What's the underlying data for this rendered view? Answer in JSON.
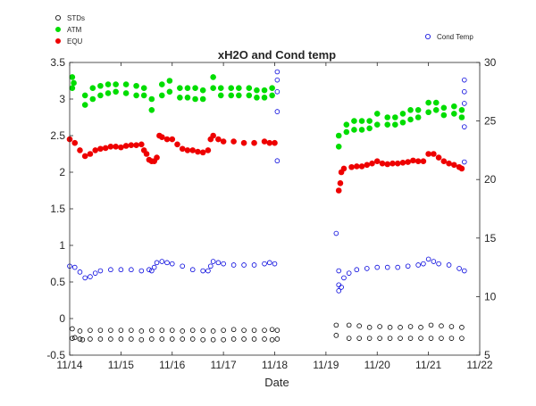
{
  "chart_data": {
    "type": "scatter",
    "title": "xH2O and Cond temp",
    "xlabel": "Date",
    "ylabel_left": "",
    "ylabel_right": "",
    "x_ticks": [
      "11/14",
      "11/15",
      "11/16",
      "11/17",
      "11/18",
      "11/19",
      "11/20",
      "11/21",
      "11/22"
    ],
    "xlim_days": [
      14,
      22
    ],
    "ylim_left": [
      -0.5,
      3.5
    ],
    "ylim_right": [
      5,
      30
    ],
    "y_ticks_left": [
      "-0.5",
      "0",
      "0.5",
      "1",
      "1.5",
      "2",
      "2.5",
      "3",
      "3.5"
    ],
    "y_ticks_right": [
      "5",
      "10",
      "15",
      "20",
      "25",
      "30"
    ],
    "grid": false,
    "legend_left": [
      "STDs",
      "ATM",
      "EQU"
    ],
    "legend_right": [
      "Cond Temp"
    ],
    "series": [
      {
        "name": "STDs",
        "axis": "left",
        "color": "#000000",
        "marker": "open-circle",
        "points": [
          [
            14.05,
            -0.14
          ],
          [
            14.05,
            -0.27
          ],
          [
            14.1,
            -0.26
          ],
          [
            14.2,
            -0.17
          ],
          [
            14.2,
            -0.28
          ],
          [
            14.25,
            -0.29
          ],
          [
            14.4,
            -0.16
          ],
          [
            14.4,
            -0.28
          ],
          [
            14.6,
            -0.16
          ],
          [
            14.6,
            -0.28
          ],
          [
            14.8,
            -0.16
          ],
          [
            14.8,
            -0.28
          ],
          [
            15.0,
            -0.16
          ],
          [
            15.0,
            -0.28
          ],
          [
            15.2,
            -0.16
          ],
          [
            15.2,
            -0.28
          ],
          [
            15.4,
            -0.17
          ],
          [
            15.4,
            -0.29
          ],
          [
            15.6,
            -0.16
          ],
          [
            15.6,
            -0.28
          ],
          [
            15.8,
            -0.16
          ],
          [
            15.8,
            -0.28
          ],
          [
            16.0,
            -0.16
          ],
          [
            16.0,
            -0.28
          ],
          [
            16.2,
            -0.17
          ],
          [
            16.2,
            -0.28
          ],
          [
            16.4,
            -0.16
          ],
          [
            16.4,
            -0.28
          ],
          [
            16.6,
            -0.16
          ],
          [
            16.6,
            -0.29
          ],
          [
            16.8,
            -0.17
          ],
          [
            16.8,
            -0.29
          ],
          [
            17.0,
            -0.16
          ],
          [
            17.0,
            -0.29
          ],
          [
            17.2,
            -0.15
          ],
          [
            17.2,
            -0.28
          ],
          [
            17.4,
            -0.16
          ],
          [
            17.4,
            -0.28
          ],
          [
            17.6,
            -0.16
          ],
          [
            17.6,
            -0.28
          ],
          [
            17.8,
            -0.16
          ],
          [
            17.8,
            -0.28
          ],
          [
            17.95,
            -0.15
          ],
          [
            17.95,
            -0.29
          ],
          [
            18.05,
            -0.16
          ],
          [
            18.05,
            -0.28
          ],
          [
            19.2,
            -0.09
          ],
          [
            19.2,
            -0.23
          ],
          [
            19.45,
            -0.09
          ],
          [
            19.45,
            -0.27
          ],
          [
            19.65,
            -0.1
          ],
          [
            19.65,
            -0.27
          ],
          [
            19.85,
            -0.12
          ],
          [
            19.85,
            -0.27
          ],
          [
            20.05,
            -0.11
          ],
          [
            20.05,
            -0.27
          ],
          [
            20.25,
            -0.12
          ],
          [
            20.25,
            -0.27
          ],
          [
            20.45,
            -0.12
          ],
          [
            20.45,
            -0.27
          ],
          [
            20.65,
            -0.11
          ],
          [
            20.65,
            -0.27
          ],
          [
            20.85,
            -0.12
          ],
          [
            20.85,
            -0.27
          ],
          [
            21.05,
            -0.09
          ],
          [
            21.05,
            -0.27
          ],
          [
            21.25,
            -0.1
          ],
          [
            21.25,
            -0.27
          ],
          [
            21.45,
            -0.11
          ],
          [
            21.45,
            -0.27
          ],
          [
            21.65,
            -0.12
          ],
          [
            21.65,
            -0.27
          ]
        ]
      },
      {
        "name": "ATM",
        "axis": "left",
        "color": "#00dd00",
        "marker": "filled-circle",
        "points": [
          [
            14.05,
            3.3
          ],
          [
            14.05,
            3.15
          ],
          [
            14.08,
            3.22
          ],
          [
            14.3,
            3.05
          ],
          [
            14.3,
            2.92
          ],
          [
            14.45,
            3.15
          ],
          [
            14.45,
            3.0
          ],
          [
            14.6,
            3.18
          ],
          [
            14.6,
            3.05
          ],
          [
            14.75,
            3.2
          ],
          [
            14.75,
            3.08
          ],
          [
            14.9,
            3.2
          ],
          [
            14.9,
            3.1
          ],
          [
            15.1,
            3.2
          ],
          [
            15.1,
            3.08
          ],
          [
            15.3,
            3.18
          ],
          [
            15.3,
            3.05
          ],
          [
            15.45,
            3.15
          ],
          [
            15.45,
            3.05
          ],
          [
            15.6,
            3.0
          ],
          [
            15.6,
            2.85
          ],
          [
            15.8,
            3.2
          ],
          [
            15.8,
            3.05
          ],
          [
            15.95,
            3.25
          ],
          [
            15.95,
            3.1
          ],
          [
            16.15,
            3.15
          ],
          [
            16.15,
            3.02
          ],
          [
            16.3,
            3.15
          ],
          [
            16.3,
            3.02
          ],
          [
            16.45,
            3.15
          ],
          [
            16.45,
            3.0
          ],
          [
            16.6,
            3.12
          ],
          [
            16.6,
            3.0
          ],
          [
            16.8,
            3.3
          ],
          [
            16.8,
            3.15
          ],
          [
            16.95,
            3.15
          ],
          [
            16.95,
            3.05
          ],
          [
            17.15,
            3.15
          ],
          [
            17.15,
            3.05
          ],
          [
            17.3,
            3.15
          ],
          [
            17.3,
            3.05
          ],
          [
            17.5,
            3.15
          ],
          [
            17.5,
            3.05
          ],
          [
            17.65,
            3.12
          ],
          [
            17.65,
            3.02
          ],
          [
            17.8,
            3.12
          ],
          [
            17.8,
            3.02
          ],
          [
            17.95,
            3.15
          ],
          [
            17.95,
            3.05
          ],
          [
            19.25,
            2.5
          ],
          [
            19.25,
            2.35
          ],
          [
            19.4,
            2.65
          ],
          [
            19.4,
            2.55
          ],
          [
            19.55,
            2.7
          ],
          [
            19.55,
            2.58
          ],
          [
            19.7,
            2.7
          ],
          [
            19.7,
            2.58
          ],
          [
            19.85,
            2.7
          ],
          [
            19.85,
            2.6
          ],
          [
            20.0,
            2.8
          ],
          [
            20.0,
            2.65
          ],
          [
            20.2,
            2.75
          ],
          [
            20.2,
            2.65
          ],
          [
            20.35,
            2.75
          ],
          [
            20.35,
            2.65
          ],
          [
            20.5,
            2.8
          ],
          [
            20.5,
            2.68
          ],
          [
            20.65,
            2.85
          ],
          [
            20.65,
            2.72
          ],
          [
            20.8,
            2.85
          ],
          [
            20.8,
            2.75
          ],
          [
            21.0,
            2.95
          ],
          [
            21.0,
            2.82
          ],
          [
            21.15,
            2.95
          ],
          [
            21.15,
            2.85
          ],
          [
            21.3,
            2.88
          ],
          [
            21.3,
            2.78
          ],
          [
            21.5,
            2.9
          ],
          [
            21.5,
            2.8
          ],
          [
            21.65,
            2.85
          ],
          [
            21.65,
            2.75
          ]
        ]
      },
      {
        "name": "EQU",
        "axis": "left",
        "color": "#ee0000",
        "marker": "filled-circle",
        "points": [
          [
            14.0,
            2.45
          ],
          [
            14.1,
            2.4
          ],
          [
            14.2,
            2.3
          ],
          [
            14.3,
            2.22
          ],
          [
            14.4,
            2.25
          ],
          [
            14.5,
            2.3
          ],
          [
            14.6,
            2.32
          ],
          [
            14.7,
            2.33
          ],
          [
            14.8,
            2.35
          ],
          [
            14.9,
            2.35
          ],
          [
            15.0,
            2.34
          ],
          [
            15.1,
            2.36
          ],
          [
            15.2,
            2.37
          ],
          [
            15.3,
            2.37
          ],
          [
            15.4,
            2.38
          ],
          [
            15.45,
            2.3
          ],
          [
            15.5,
            2.25
          ],
          [
            15.55,
            2.17
          ],
          [
            15.6,
            2.15
          ],
          [
            15.65,
            2.15
          ],
          [
            15.7,
            2.2
          ],
          [
            15.75,
            2.5
          ],
          [
            15.8,
            2.48
          ],
          [
            15.9,
            2.45
          ],
          [
            16.0,
            2.45
          ],
          [
            16.1,
            2.38
          ],
          [
            16.2,
            2.32
          ],
          [
            16.3,
            2.3
          ],
          [
            16.4,
            2.3
          ],
          [
            16.5,
            2.28
          ],
          [
            16.6,
            2.27
          ],
          [
            16.7,
            2.3
          ],
          [
            16.75,
            2.45
          ],
          [
            16.8,
            2.5
          ],
          [
            16.9,
            2.45
          ],
          [
            17.0,
            2.42
          ],
          [
            17.2,
            2.42
          ],
          [
            17.4,
            2.4
          ],
          [
            17.6,
            2.4
          ],
          [
            17.8,
            2.42
          ],
          [
            17.9,
            2.4
          ],
          [
            18.0,
            2.4
          ],
          [
            19.25,
            1.75
          ],
          [
            19.28,
            1.85
          ],
          [
            19.3,
            2.0
          ],
          [
            19.35,
            2.05
          ],
          [
            19.5,
            2.07
          ],
          [
            19.6,
            2.08
          ],
          [
            19.7,
            2.08
          ],
          [
            19.8,
            2.1
          ],
          [
            19.9,
            2.12
          ],
          [
            20.0,
            2.15
          ],
          [
            20.1,
            2.12
          ],
          [
            20.2,
            2.11
          ],
          [
            20.3,
            2.12
          ],
          [
            20.4,
            2.12
          ],
          [
            20.5,
            2.13
          ],
          [
            20.6,
            2.14
          ],
          [
            20.7,
            2.16
          ],
          [
            20.8,
            2.15
          ],
          [
            20.9,
            2.15
          ],
          [
            21.0,
            2.25
          ],
          [
            21.1,
            2.25
          ],
          [
            21.2,
            2.2
          ],
          [
            21.3,
            2.15
          ],
          [
            21.4,
            2.12
          ],
          [
            21.5,
            2.1
          ],
          [
            21.6,
            2.07
          ],
          [
            21.65,
            2.05
          ]
        ]
      },
      {
        "name": "Cond Temp",
        "axis": "right",
        "color": "#0000dd",
        "marker": "open-circle",
        "points": [
          [
            14.0,
            12.6
          ],
          [
            14.1,
            12.5
          ],
          [
            14.2,
            12.1
          ],
          [
            14.3,
            11.6
          ],
          [
            14.4,
            11.7
          ],
          [
            14.5,
            12.0
          ],
          [
            14.6,
            12.2
          ],
          [
            14.8,
            12.3
          ],
          [
            15.0,
            12.3
          ],
          [
            15.2,
            12.3
          ],
          [
            15.4,
            12.2
          ],
          [
            15.55,
            12.3
          ],
          [
            15.6,
            12.2
          ],
          [
            15.65,
            12.5
          ],
          [
            15.7,
            12.9
          ],
          [
            15.8,
            13.0
          ],
          [
            15.9,
            12.9
          ],
          [
            16.0,
            12.8
          ],
          [
            16.2,
            12.6
          ],
          [
            16.4,
            12.3
          ],
          [
            16.6,
            12.2
          ],
          [
            16.7,
            12.2
          ],
          [
            16.75,
            12.6
          ],
          [
            16.8,
            13.0
          ],
          [
            16.9,
            12.9
          ],
          [
            17.0,
            12.8
          ],
          [
            17.2,
            12.7
          ],
          [
            17.4,
            12.7
          ],
          [
            17.6,
            12.7
          ],
          [
            17.8,
            12.8
          ],
          [
            17.9,
            12.9
          ],
          [
            18.0,
            12.8
          ],
          [
            18.05,
            29.2
          ],
          [
            18.05,
            28.5
          ],
          [
            18.05,
            27.5
          ],
          [
            18.05,
            25.8
          ],
          [
            18.05,
            21.6
          ],
          [
            19.2,
            15.4
          ],
          [
            19.25,
            12.2
          ],
          [
            19.25,
            11.0
          ],
          [
            19.25,
            10.5
          ],
          [
            19.3,
            10.8
          ],
          [
            19.35,
            11.6
          ],
          [
            19.45,
            12.0
          ],
          [
            19.6,
            12.3
          ],
          [
            19.8,
            12.4
          ],
          [
            20.0,
            12.5
          ],
          [
            20.2,
            12.5
          ],
          [
            20.4,
            12.5
          ],
          [
            20.6,
            12.6
          ],
          [
            20.8,
            12.7
          ],
          [
            20.9,
            12.8
          ],
          [
            21.0,
            13.2
          ],
          [
            21.1,
            13.0
          ],
          [
            21.2,
            12.8
          ],
          [
            21.4,
            12.7
          ],
          [
            21.6,
            12.4
          ],
          [
            21.7,
            12.2
          ],
          [
            21.7,
            28.5
          ],
          [
            21.7,
            27.5
          ],
          [
            21.7,
            26.5
          ],
          [
            21.7,
            24.5
          ],
          [
            21.7,
            21.5
          ]
        ]
      }
    ]
  }
}
